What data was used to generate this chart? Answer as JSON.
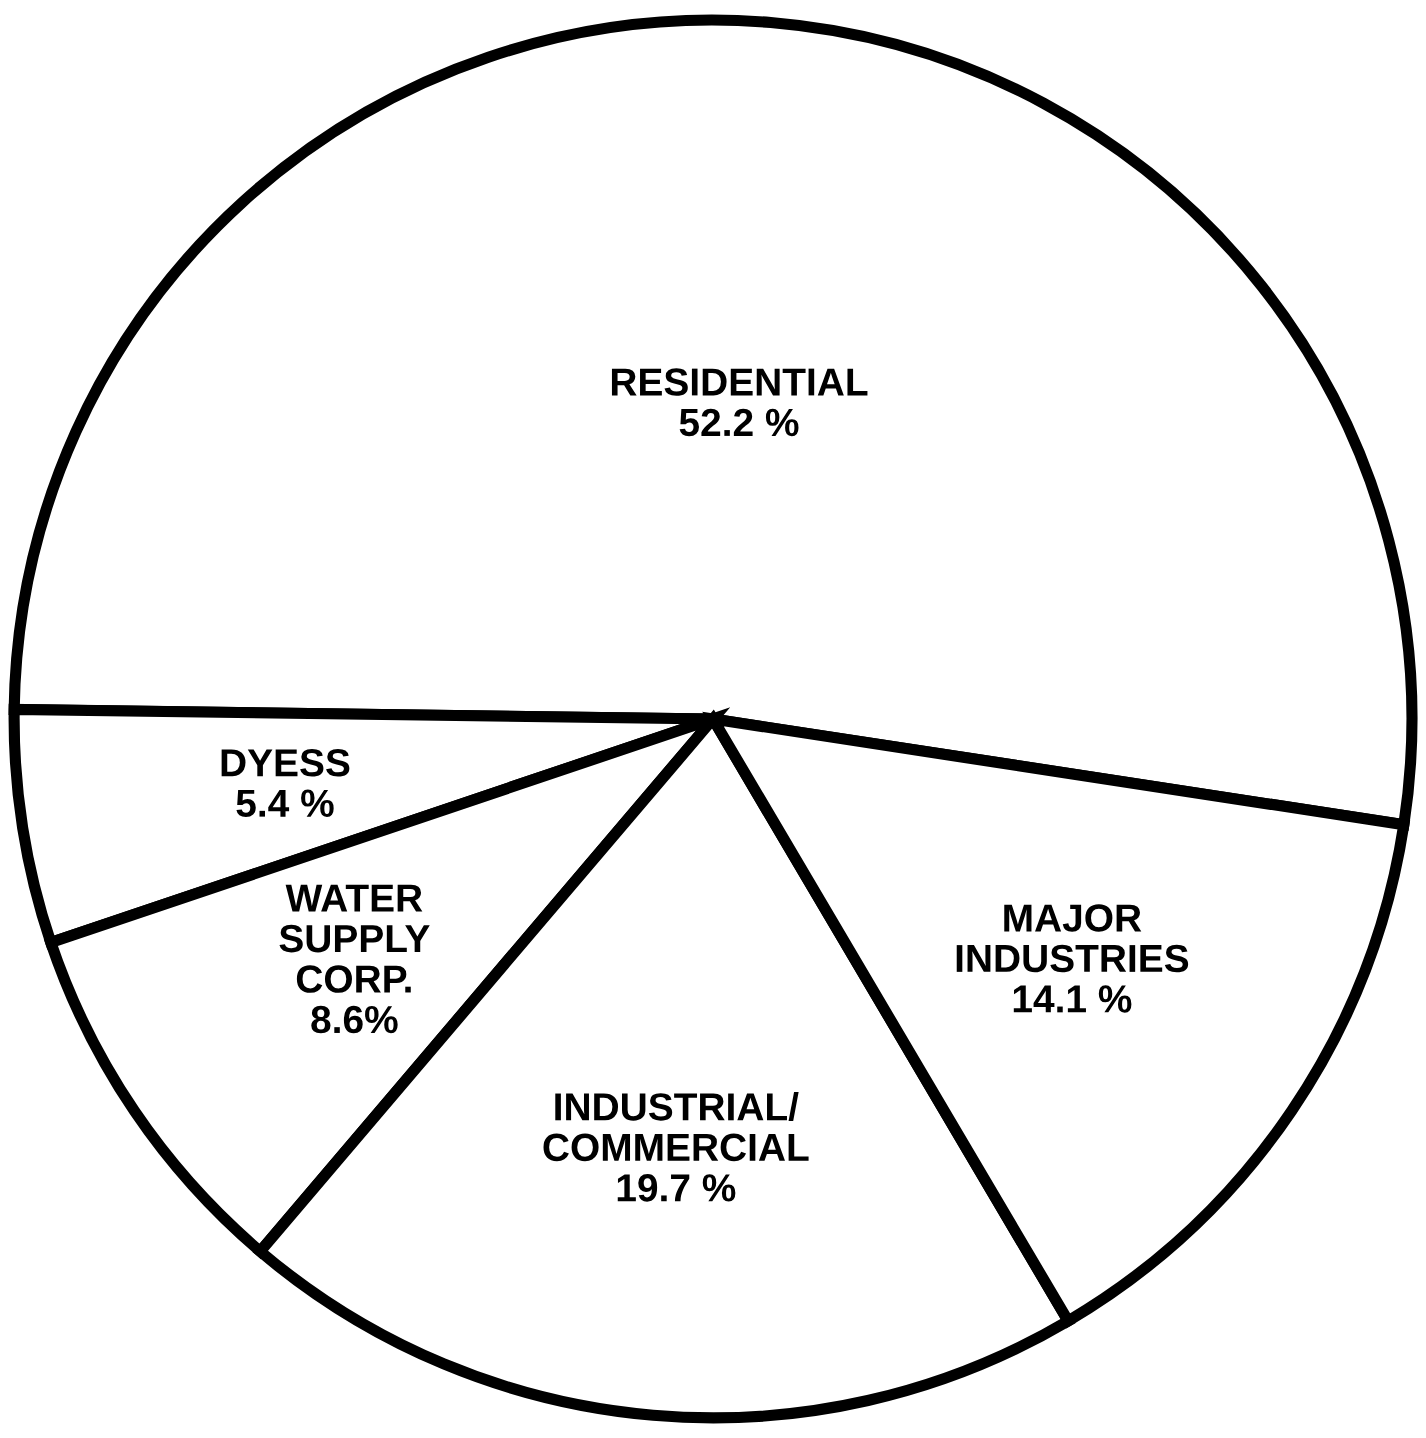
{
  "chart_data": {
    "type": "pie",
    "categories": [
      "RESIDENTIAL",
      "DYESS",
      "WATER\nSUPPLY\nCORP.",
      "INDUSTRIAL/\nCOMMERCIAL",
      "MAJOR\nINDUSTRIES"
    ],
    "values": [
      52.2,
      5.4,
      8.6,
      19.7,
      14.1
    ],
    "value_labels": [
      "52.2 %",
      "5.4 %",
      "8.6%",
      "19.7 %",
      "14.1 %"
    ],
    "colors": [
      "#ffffff",
      "#ffffff",
      "#ffffff",
      "#ffffff",
      "#ffffff"
    ],
    "legend": false
  }
}
